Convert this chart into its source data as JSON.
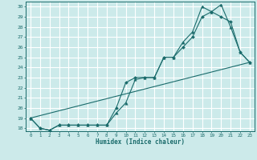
{
  "title": "",
  "xlabel": "Humidex (Indice chaleur)",
  "ylabel": "",
  "bg_color": "#cceaea",
  "grid_color": "#ffffff",
  "line_color": "#1a6b6b",
  "xlim": [
    -0.5,
    23.5
  ],
  "ylim": [
    17.7,
    30.5
  ],
  "xticks": [
    0,
    1,
    2,
    3,
    4,
    5,
    6,
    7,
    8,
    9,
    10,
    11,
    12,
    13,
    14,
    15,
    16,
    17,
    18,
    19,
    20,
    21,
    22,
    23
  ],
  "yticks": [
    18,
    19,
    20,
    21,
    22,
    23,
    24,
    25,
    26,
    27,
    28,
    29,
    30
  ],
  "line1_x": [
    0,
    1,
    2,
    3,
    4,
    5,
    6,
    7,
    8,
    9,
    10,
    11,
    12,
    13,
    14,
    15,
    16,
    17,
    18,
    19,
    20,
    21,
    22,
    23
  ],
  "line1_y": [
    19.0,
    18.0,
    17.8,
    18.3,
    18.3,
    18.3,
    18.3,
    18.3,
    18.3,
    19.5,
    20.5,
    22.8,
    23.0,
    23.0,
    25.0,
    25.0,
    26.5,
    27.5,
    30.0,
    29.5,
    30.2,
    28.0,
    25.5,
    24.5
  ],
  "line2_x": [
    0,
    1,
    2,
    3,
    4,
    5,
    6,
    7,
    8,
    9,
    10,
    11,
    12,
    13,
    14,
    15,
    16,
    17,
    18,
    19,
    20,
    21,
    22,
    23
  ],
  "line2_y": [
    19.0,
    18.0,
    17.8,
    18.3,
    18.3,
    18.3,
    18.3,
    18.3,
    18.3,
    20.0,
    22.5,
    23.0,
    23.0,
    23.0,
    25.0,
    25.0,
    26.0,
    27.0,
    29.0,
    29.5,
    29.0,
    28.5,
    25.5,
    24.5
  ],
  "line3_x": [
    0,
    23
  ],
  "line3_y": [
    19.0,
    24.5
  ]
}
